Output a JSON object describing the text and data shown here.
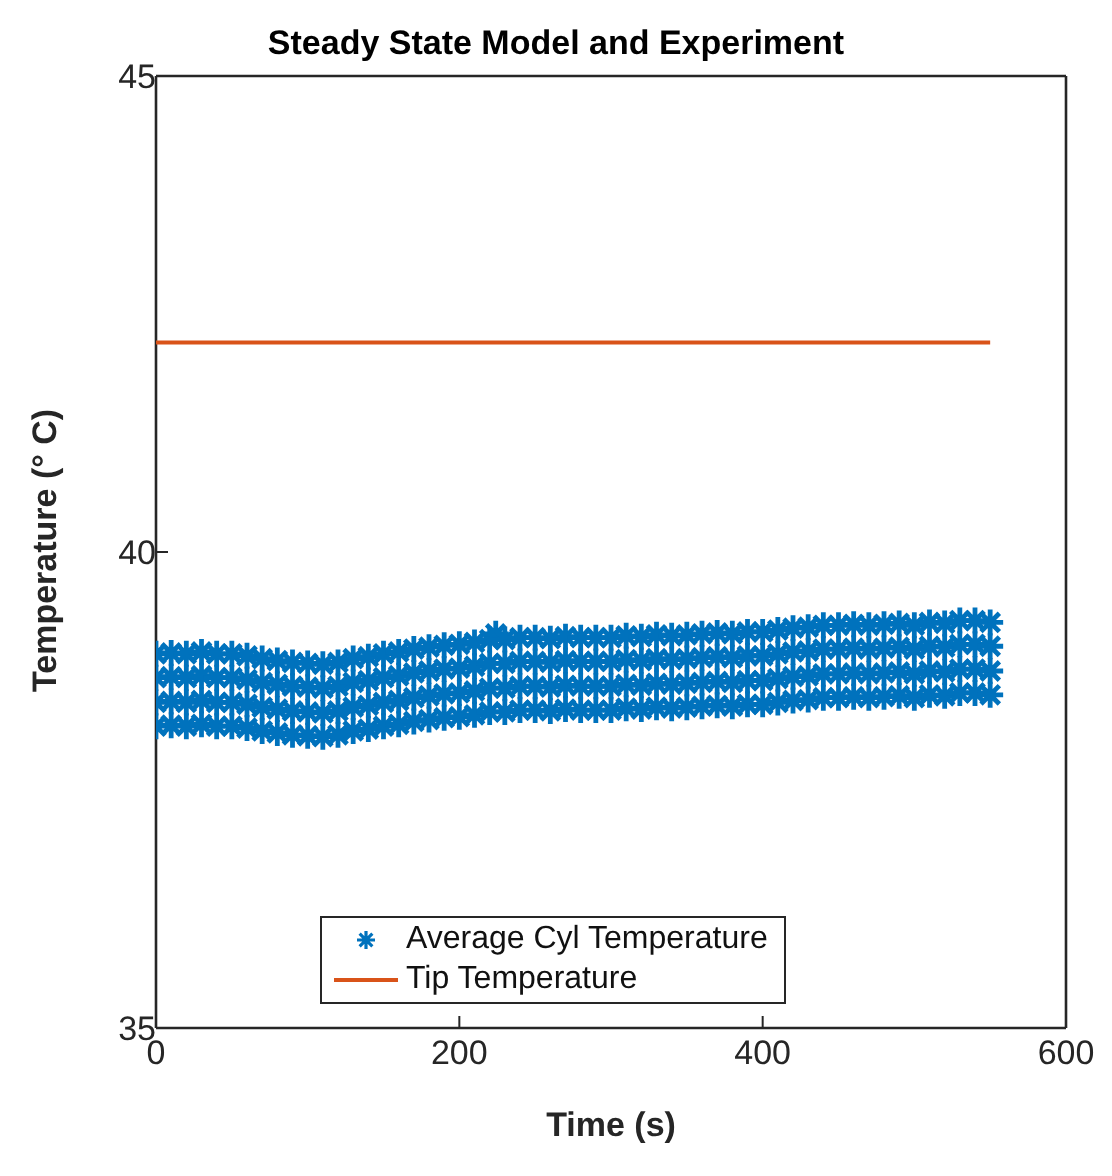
{
  "chart_data": {
    "type": "scatter",
    "title": "Steady State Model and Experiment",
    "xlabel": "Time (s)",
    "ylabel": "Temperature (° C)",
    "xlim": [
      0,
      600
    ],
    "xticks": [
      0,
      200,
      400,
      600
    ],
    "ylim": [
      35,
      45
    ],
    "yticks": [
      35,
      40,
      45
    ],
    "grid": false,
    "legend": "bottom",
    "series": [
      {
        "name": "Average Cyl Temperature",
        "type": "scatter",
        "marker": "cross",
        "color": "#0072bd",
        "x": [
          0,
          0,
          0,
          0,
          10,
          10,
          10,
          10,
          20,
          20,
          20,
          20,
          30,
          30,
          30,
          30,
          40,
          40,
          40,
          40,
          50,
          50,
          50,
          50,
          60,
          60,
          60,
          60,
          70,
          70,
          70,
          70,
          80,
          80,
          80,
          80,
          90,
          90,
          90,
          90,
          100,
          100,
          100,
          100,
          110,
          110,
          110,
          110,
          120,
          120,
          120,
          120,
          130,
          130,
          130,
          130,
          140,
          140,
          140,
          140,
          150,
          150,
          150,
          150,
          160,
          160,
          160,
          160,
          170,
          170,
          170,
          170,
          180,
          180,
          180,
          180,
          190,
          190,
          190,
          190,
          200,
          200,
          200,
          200,
          210,
          210,
          210,
          210,
          220,
          220,
          220,
          220,
          224,
          230,
          230,
          230,
          230,
          240,
          240,
          240,
          240,
          250,
          250,
          250,
          250,
          260,
          260,
          260,
          260,
          270,
          270,
          270,
          270,
          280,
          280,
          280,
          280,
          290,
          290,
          290,
          290,
          300,
          300,
          300,
          300,
          310,
          310,
          310,
          310,
          320,
          320,
          320,
          320,
          330,
          330,
          330,
          330,
          340,
          340,
          340,
          340,
          350,
          350,
          350,
          350,
          360,
          360,
          360,
          360,
          370,
          370,
          370,
          370,
          380,
          380,
          380,
          380,
          390,
          390,
          390,
          390,
          400,
          400,
          400,
          400,
          410,
          410,
          410,
          410,
          420,
          420,
          420,
          420,
          430,
          430,
          430,
          430,
          440,
          440,
          440,
          440,
          450,
          450,
          450,
          450,
          460,
          460,
          460,
          460,
          470,
          470,
          470,
          470,
          480,
          480,
          480,
          480,
          490,
          490,
          490,
          490,
          500,
          500,
          500,
          500,
          510,
          510,
          510,
          510,
          520,
          520,
          520,
          520,
          530,
          530,
          530,
          530,
          540,
          540,
          540,
          540,
          550,
          550,
          550,
          550
        ],
        "values": [
          38.93,
          38.68,
          38.42,
          38.17,
          38.94,
          38.69,
          38.43,
          38.18,
          38.93,
          38.68,
          38.42,
          38.17,
          38.95,
          38.7,
          38.44,
          38.19,
          38.93,
          38.68,
          38.42,
          38.17,
          38.93,
          38.68,
          38.42,
          38.17,
          38.91,
          38.66,
          38.4,
          38.15,
          38.88,
          38.63,
          38.37,
          38.12,
          38.86,
          38.61,
          38.35,
          38.1,
          38.84,
          38.59,
          38.33,
          38.08,
          38.83,
          38.58,
          38.32,
          38.07,
          38.82,
          38.57,
          38.31,
          38.06,
          38.84,
          38.59,
          38.33,
          38.08,
          38.88,
          38.63,
          38.37,
          38.12,
          38.9,
          38.65,
          38.39,
          38.14,
          38.93,
          38.68,
          38.42,
          38.17,
          38.95,
          38.7,
          38.44,
          38.19,
          38.98,
          38.73,
          38.47,
          38.22,
          39.0,
          38.75,
          38.49,
          38.24,
          39.02,
          38.77,
          38.51,
          38.26,
          39.03,
          38.78,
          38.52,
          38.27,
          39.05,
          38.8,
          38.54,
          38.29,
          39.08,
          38.83,
          38.57,
          38.32,
          39.14,
          39.08,
          38.83,
          38.57,
          38.32,
          39.1,
          38.85,
          38.59,
          38.34,
          39.1,
          38.85,
          38.59,
          38.34,
          39.09,
          38.84,
          38.58,
          38.33,
          39.11,
          38.86,
          38.6,
          38.35,
          39.1,
          38.85,
          38.59,
          38.34,
          39.1,
          38.85,
          38.59,
          38.34,
          39.1,
          38.85,
          38.59,
          38.34,
          39.12,
          38.87,
          38.61,
          38.36,
          39.11,
          38.86,
          38.6,
          38.35,
          39.13,
          38.88,
          38.62,
          38.37,
          39.12,
          38.87,
          38.61,
          38.36,
          39.13,
          38.88,
          38.62,
          38.37,
          39.14,
          38.89,
          38.63,
          38.38,
          39.15,
          38.9,
          38.64,
          38.39,
          39.14,
          38.89,
          38.63,
          38.38,
          39.16,
          38.91,
          38.65,
          38.4,
          39.16,
          38.91,
          38.65,
          38.4,
          39.18,
          38.93,
          38.67,
          38.42,
          39.2,
          38.95,
          38.69,
          38.44,
          39.21,
          38.96,
          38.7,
          38.45,
          39.23,
          38.98,
          38.72,
          38.47,
          39.23,
          38.98,
          38.72,
          38.47,
          39.24,
          38.99,
          38.73,
          38.48,
          39.23,
          38.98,
          38.72,
          38.47,
          39.24,
          38.99,
          38.73,
          38.48,
          39.25,
          39.0,
          38.74,
          38.49,
          39.23,
          38.98,
          38.72,
          38.47,
          39.26,
          39.01,
          38.75,
          38.5,
          39.25,
          39.0,
          38.74,
          38.49,
          39.28,
          39.03,
          38.77,
          38.52,
          39.28,
          39.03,
          38.77,
          38.52,
          39.26,
          39.01,
          38.75,
          38.5
        ]
      },
      {
        "name": "Tip Temperature",
        "type": "line",
        "marker": "none",
        "line_style": "solid",
        "color": "#d95319",
        "x": [
          0,
          550
        ],
        "values": [
          42.2,
          42.2
        ]
      }
    ]
  }
}
